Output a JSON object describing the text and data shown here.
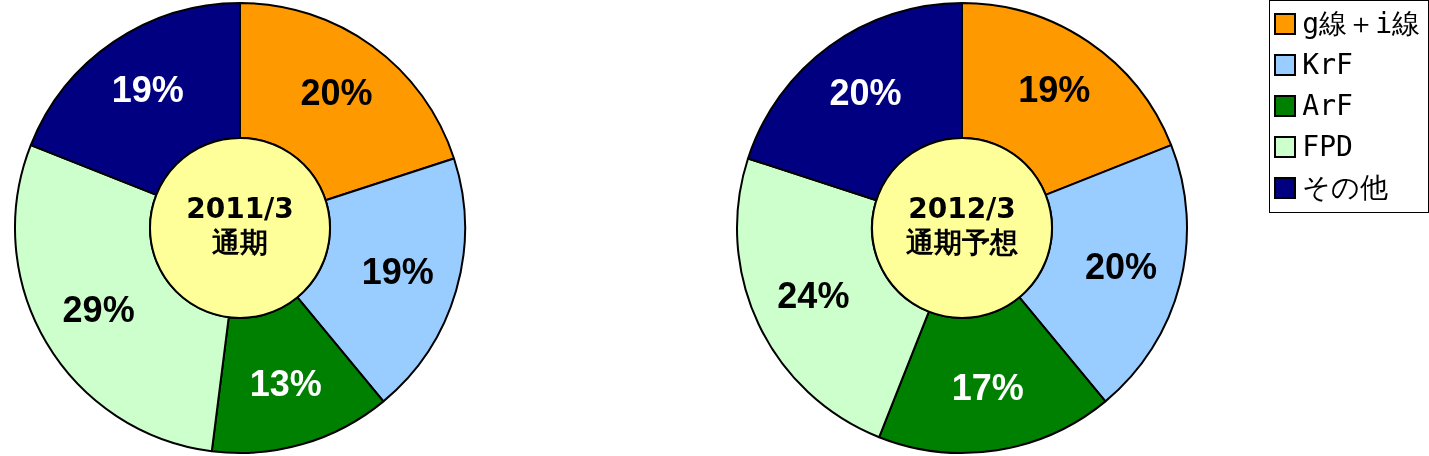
{
  "chart_data": [
    {
      "type": "donut",
      "title": "2011/3\n通期",
      "categories": [
        null,
        null,
        null,
        null,
        null
      ],
      "values": [
        20,
        19,
        13,
        29,
        19
      ],
      "value_labels": [
        "20%",
        "19%",
        "13%",
        "29%",
        "19%"
      ],
      "colors": [
        "#ff9900",
        "#99ccff",
        "#008000",
        "#ccffcc",
        "#000080"
      ]
    },
    {
      "type": "donut",
      "title": "2012/3\n通期予想",
      "categories": [
        "g線＋i線",
        "KrF",
        "ArF",
        "FPD",
        "その他"
      ],
      "values": [
        19,
        20,
        17,
        24,
        20
      ],
      "value_labels": [
        "19%",
        "20%",
        "17%",
        "24%",
        "20%"
      ],
      "colors": [
        "#ff9900",
        "#99ccff",
        "#008000",
        "#ccffcc",
        "#000080"
      ],
      "legend": "top right"
    }
  ]
}
